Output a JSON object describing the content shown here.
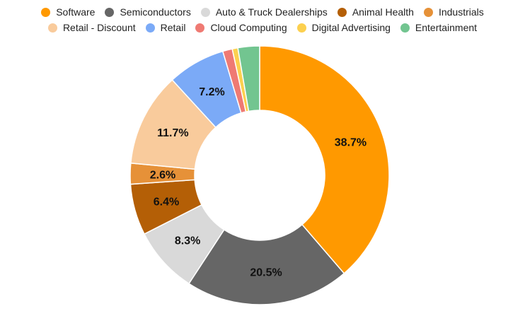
{
  "chart_data": {
    "type": "pie",
    "donut": true,
    "legend_position": "top",
    "title": "",
    "categories": [
      "Software",
      "Semiconductors",
      "Auto & Truck Dealerships",
      "Animal Health",
      "Industrials",
      "Retail - Discount",
      "Retail",
      "Cloud Computing",
      "Digital Advertising",
      "Entertainment"
    ],
    "values": [
      38.7,
      20.5,
      8.3,
      6.4,
      2.6,
      11.7,
      7.2,
      1.2,
      0.7,
      2.7
    ],
    "data_labels": [
      "38.7%",
      "20.5%",
      "8.3%",
      "6.4%",
      "2.6%",
      "11.7%",
      "7.2%",
      "",
      "",
      ""
    ],
    "colors": [
      "#FF9900",
      "#666666",
      "#D9D9D9",
      "#B45F06",
      "#E69138",
      "#F9CB9C",
      "#7BAAF7",
      "#EF7A73",
      "#FCD04F",
      "#72C590"
    ]
  }
}
